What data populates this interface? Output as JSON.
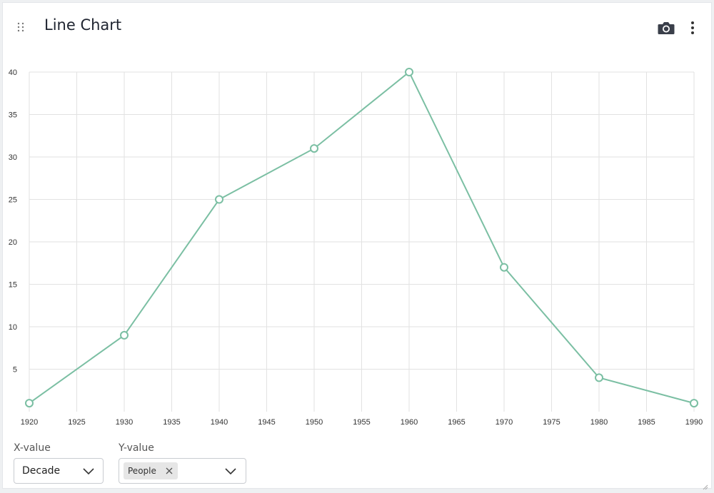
{
  "header": {
    "title": "Line Chart",
    "drag_icon": "grip-dots-icon",
    "camera_icon": "camera-icon",
    "menu_icon": "more-vertical-icon"
  },
  "controls": {
    "x_label": "X-value",
    "x_value": "Decade",
    "y_label": "Y-value",
    "y_chip": "People"
  },
  "colors": {
    "line": "#7bbfa3",
    "grid": "#e2e2e2"
  },
  "chart_data": {
    "type": "line",
    "title": "",
    "xlabel": "",
    "ylabel": "",
    "x": [
      1920,
      1930,
      1940,
      1950,
      1960,
      1970,
      1980,
      1990
    ],
    "series": [
      {
        "name": "People",
        "values": [
          1,
          9,
          25,
          31,
          40,
          17,
          4,
          1
        ]
      }
    ],
    "x_ticks": [
      1920,
      1925,
      1930,
      1935,
      1940,
      1945,
      1950,
      1955,
      1960,
      1965,
      1970,
      1975,
      1980,
      1985,
      1990
    ],
    "y_ticks": [
      5,
      10,
      15,
      20,
      25,
      30,
      35,
      40
    ],
    "xlim": [
      1920,
      1990
    ],
    "ylim": [
      0,
      40
    ],
    "grid": true,
    "markers": "hollow-circle"
  }
}
